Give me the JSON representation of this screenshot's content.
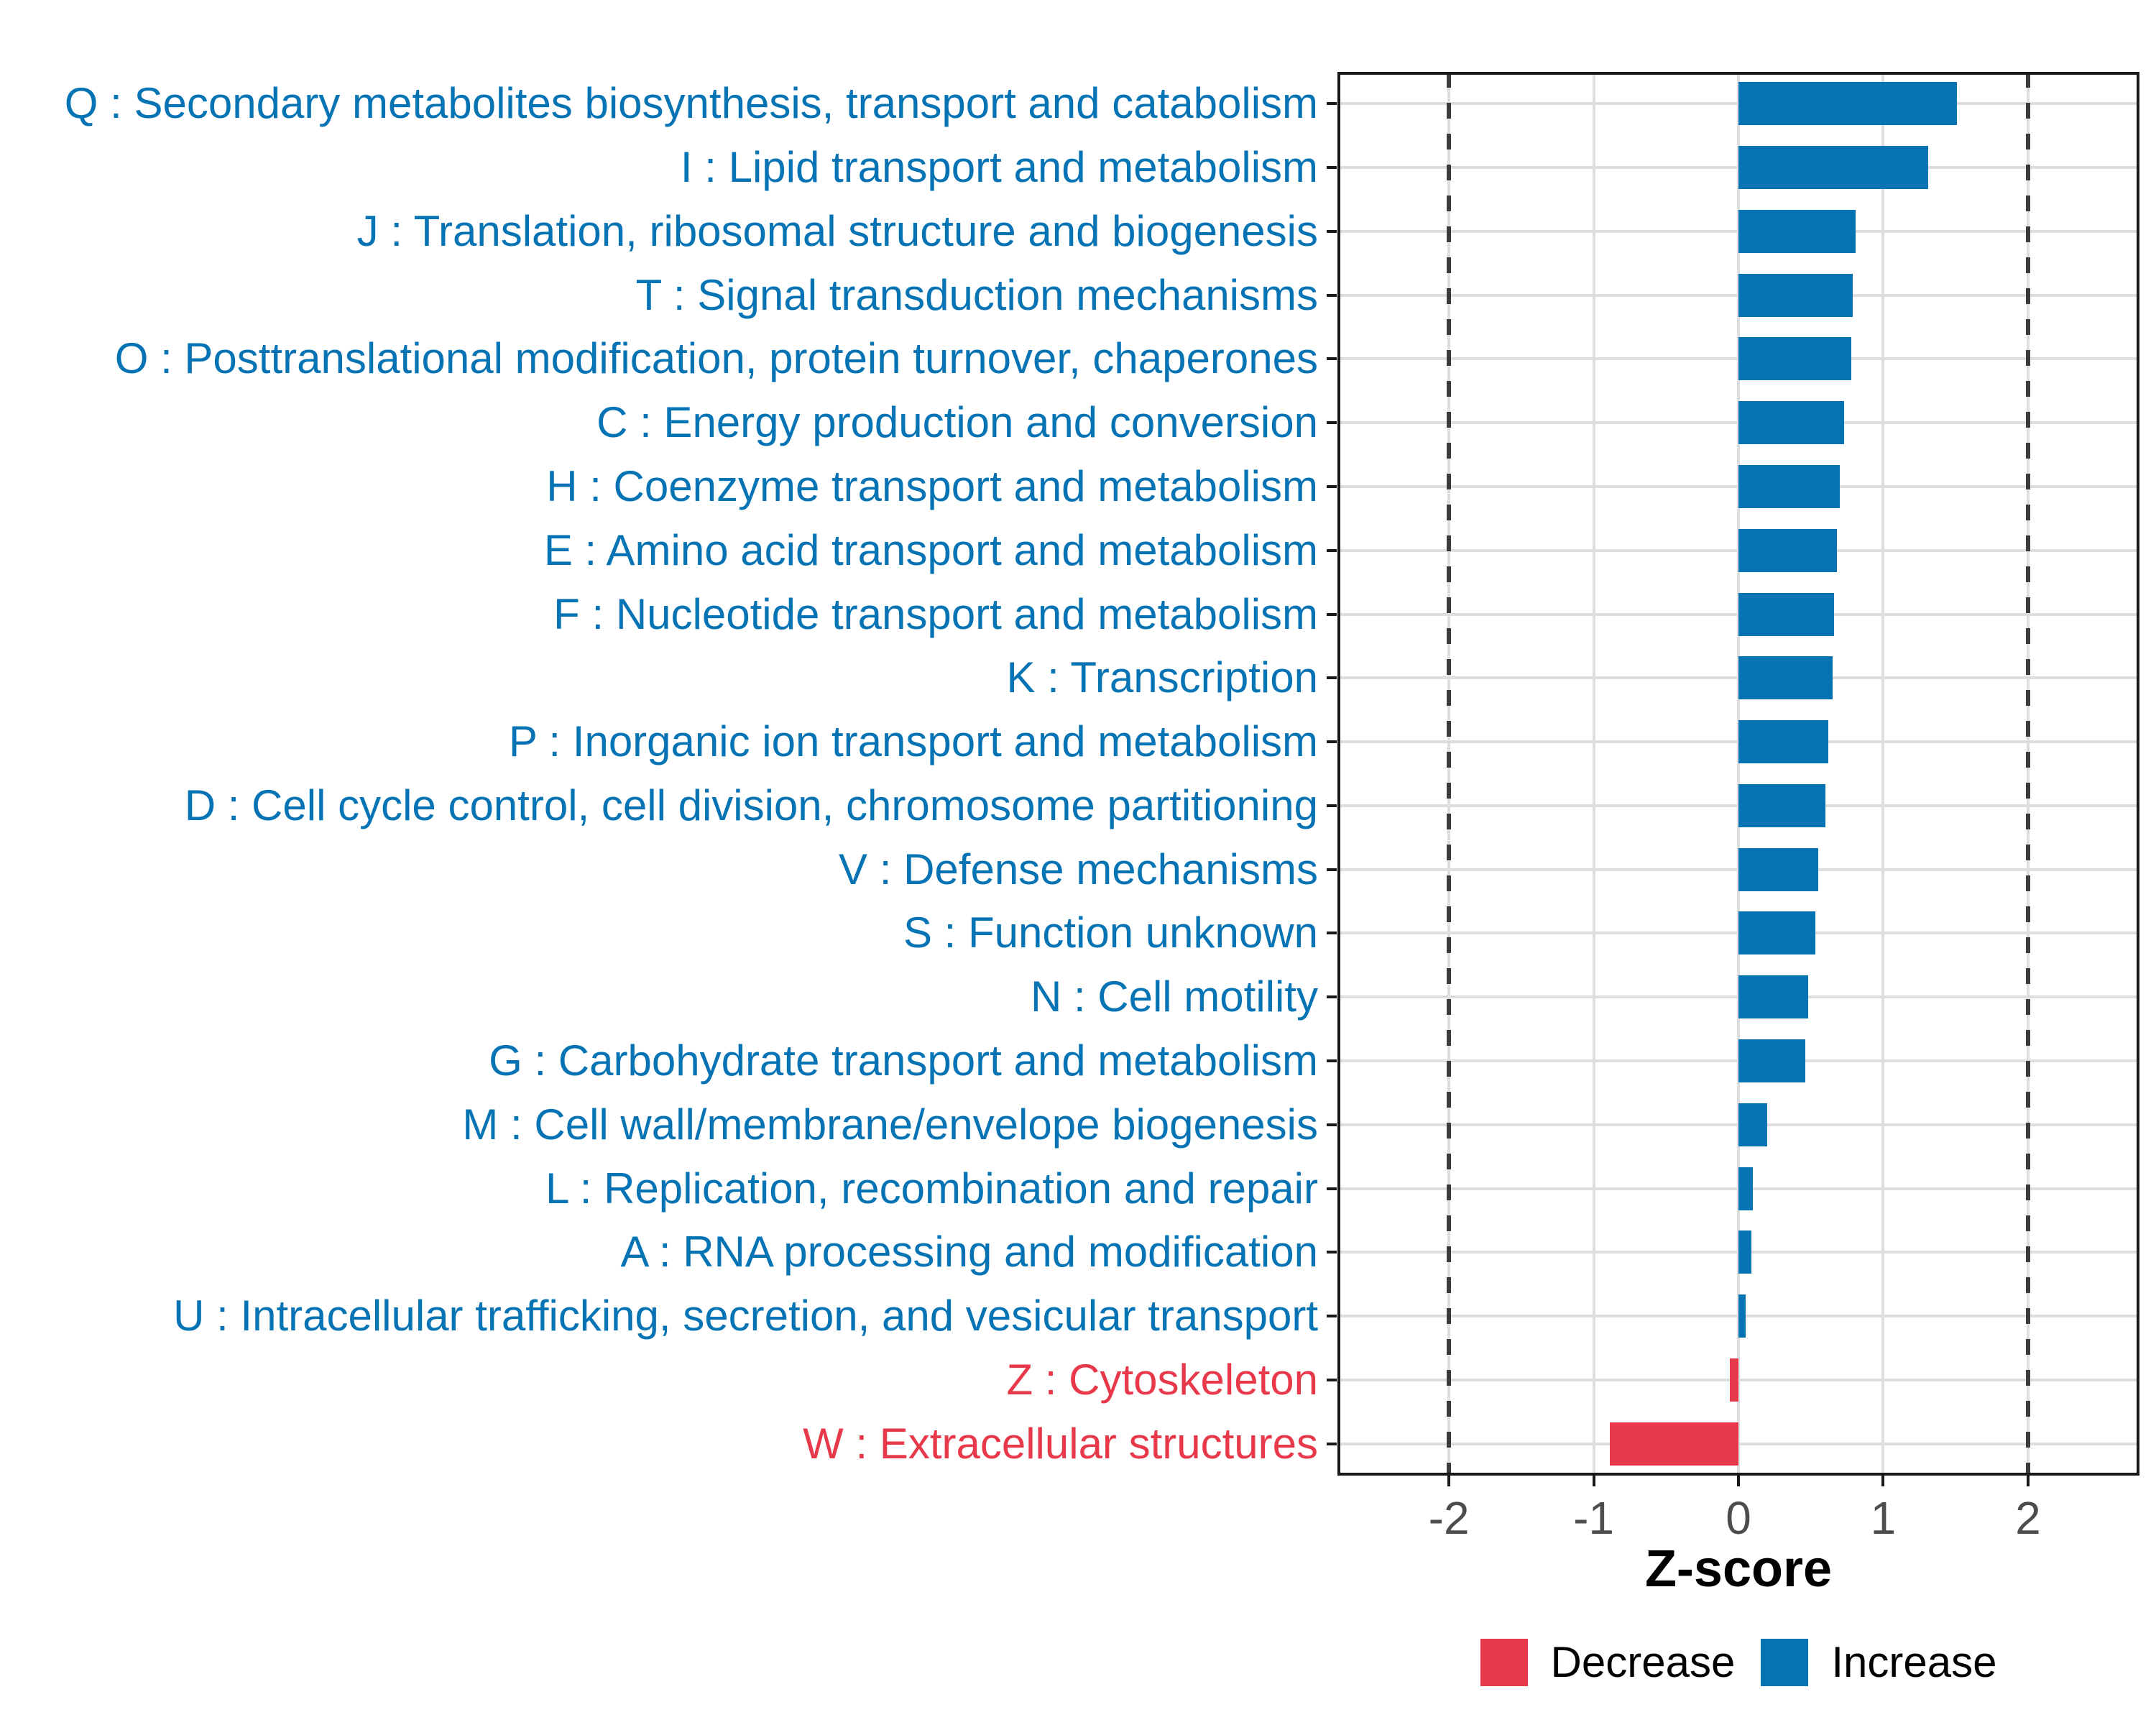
{
  "chart_data": {
    "type": "bar",
    "orientation": "horizontal",
    "xlabel": "Z-score",
    "xlim": [
      -2.77,
      2.77
    ],
    "x_ticks": [
      -2,
      -1,
      0,
      1,
      2
    ],
    "reference_lines": [
      -2,
      2
    ],
    "grid": true,
    "legend_position": "bottom",
    "colors": {
      "Increase": "#0674b4",
      "Decrease": "#e8394a"
    },
    "legend": [
      {
        "label": "Decrease",
        "group": "Decrease"
      },
      {
        "label": "Increase",
        "group": "Increase"
      }
    ],
    "rows": [
      {
        "label": "Q : Secondary metabolites biosynthesis, transport and catabolism",
        "value": 1.51,
        "group": "Increase"
      },
      {
        "label": "I : Lipid transport and metabolism",
        "value": 1.31,
        "group": "Increase"
      },
      {
        "label": "J : Translation, ribosomal structure and biogenesis",
        "value": 0.81,
        "group": "Increase"
      },
      {
        "label": "T : Signal transduction mechanisms",
        "value": 0.79,
        "group": "Increase"
      },
      {
        "label": "O : Posttranslational modification, protein turnover, chaperones",
        "value": 0.78,
        "group": "Increase"
      },
      {
        "label": "C : Energy production and conversion",
        "value": 0.73,
        "group": "Increase"
      },
      {
        "label": "H : Coenzyme transport and metabolism",
        "value": 0.7,
        "group": "Increase"
      },
      {
        "label": "E : Amino acid transport and metabolism",
        "value": 0.68,
        "group": "Increase"
      },
      {
        "label": "F : Nucleotide transport and metabolism",
        "value": 0.66,
        "group": "Increase"
      },
      {
        "label": "K : Transcription",
        "value": 0.65,
        "group": "Increase"
      },
      {
        "label": "P : Inorganic ion transport and metabolism",
        "value": 0.62,
        "group": "Increase"
      },
      {
        "label": "D : Cell cycle control, cell division, chromosome partitioning",
        "value": 0.6,
        "group": "Increase"
      },
      {
        "label": "V : Defense mechanisms",
        "value": 0.55,
        "group": "Increase"
      },
      {
        "label": "S : Function unknown",
        "value": 0.53,
        "group": "Increase"
      },
      {
        "label": "N : Cell motility",
        "value": 0.48,
        "group": "Increase"
      },
      {
        "label": "G : Carbohydrate transport and metabolism",
        "value": 0.46,
        "group": "Increase"
      },
      {
        "label": "M : Cell wall/membrane/envelope biogenesis",
        "value": 0.2,
        "group": "Increase"
      },
      {
        "label": "L : Replication, recombination and repair",
        "value": 0.1,
        "group": "Increase"
      },
      {
        "label": "A : RNA processing and modification",
        "value": 0.09,
        "group": "Increase"
      },
      {
        "label": "U : Intracellular trafficking, secretion, and vesicular transport",
        "value": 0.05,
        "group": "Increase"
      },
      {
        "label": "Z : Cytoskeleton",
        "value": -0.06,
        "group": "Decrease"
      },
      {
        "label": "W : Extracellular structures",
        "value": -0.89,
        "group": "Decrease"
      }
    ]
  }
}
